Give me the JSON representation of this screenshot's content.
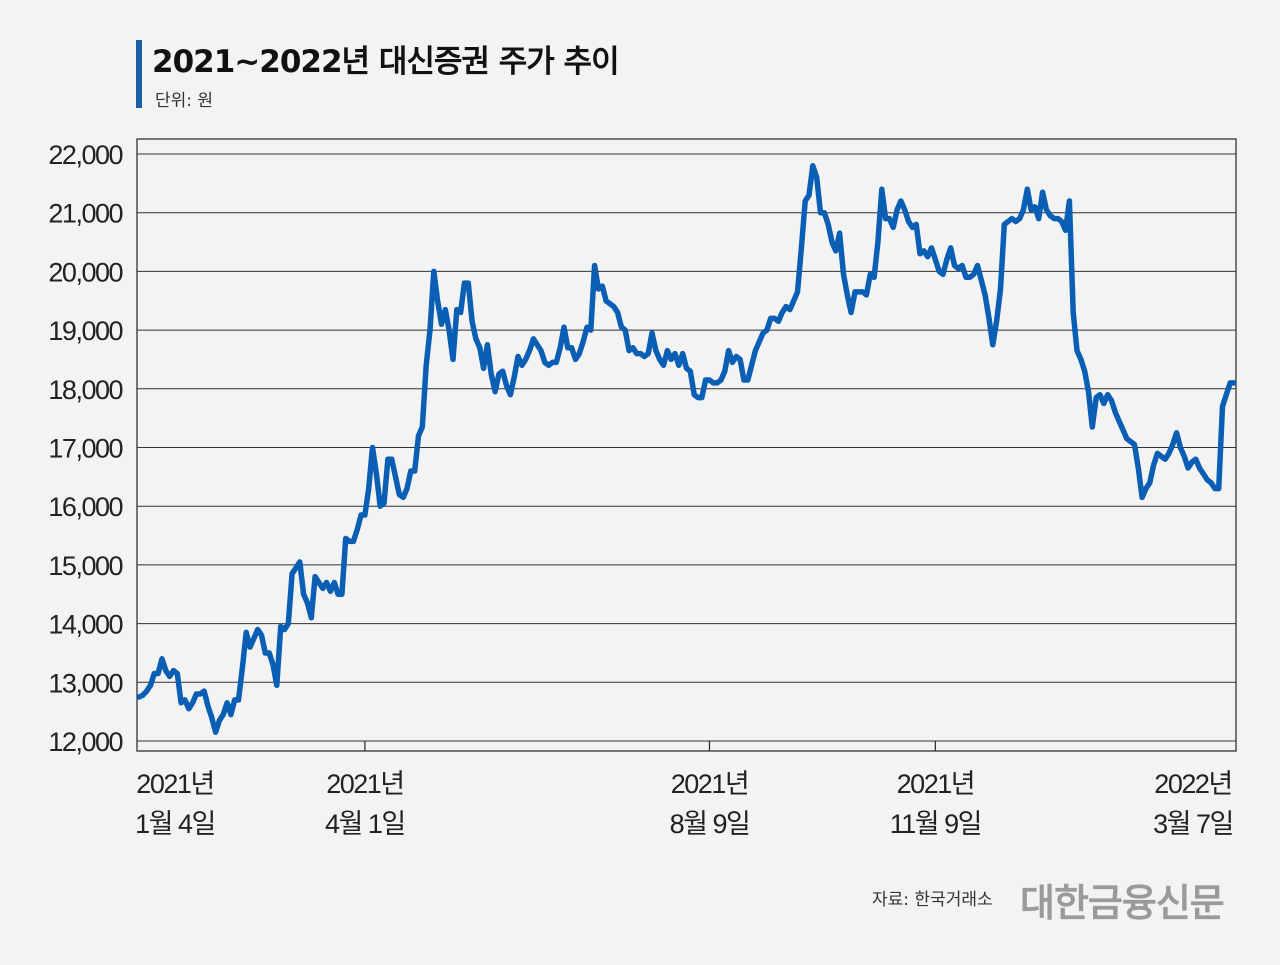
{
  "title": "2021~2022년 대신증권 주가 추이",
  "unit": "단위: 원",
  "source": "자료: 한국거래소",
  "brand": "대한금융신문",
  "colors": {
    "line": "#0a5fb4",
    "accent": "#1a5ea8",
    "grid": "#333333"
  },
  "chart_data": {
    "type": "line",
    "title": "2021~2022년 대신증권 주가 추이",
    "ylabel": "단위: 원",
    "ylim": [
      12000,
      22000
    ],
    "yticks": [
      12000,
      13000,
      14000,
      15000,
      16000,
      17000,
      18000,
      19000,
      20000,
      21000,
      22000
    ],
    "ytick_labels": [
      "12,000",
      "13,000",
      "14,000",
      "15,000",
      "16,000",
      "17,000",
      "18,000",
      "19,000",
      "20,000",
      "21,000",
      "22,000"
    ],
    "xticks": [
      {
        "line1": "2021년",
        "line2": "1월 4일",
        "index": 0
      },
      {
        "line1": "2021년",
        "line2": "4월 1일",
        "index": 59
      },
      {
        "line1": "2021년",
        "line2": "8월 9일",
        "index": 149
      },
      {
        "line1": "2021년",
        "line2": "11월 9일",
        "index": 208
      },
      {
        "line1": "2022년",
        "line2": "3월 7일",
        "index": 249
      }
    ],
    "grid": true,
    "series": [
      {
        "values": [
          12750,
          12780,
          12850,
          12950,
          13150,
          13150,
          13400,
          13200,
          13100,
          13200,
          13150,
          12650,
          12700,
          12550,
          12650,
          12800,
          12800,
          12850,
          12600,
          12400,
          12150,
          12350,
          12450,
          12650,
          12450,
          12700,
          12700,
          13250,
          13850,
          13600,
          13750,
          13900,
          13800,
          13500,
          13500,
          13300,
          12950,
          13950,
          13900,
          14000,
          14850,
          14950,
          15050,
          14500,
          14350,
          14100,
          14800,
          14700,
          14600,
          14700,
          14550,
          14700,
          14500,
          14500,
          15450,
          15400,
          15400,
          15600,
          15850,
          15850,
          16300,
          17000,
          16550,
          16000,
          16050,
          16800,
          16800,
          16500,
          16200,
          16150,
          16300,
          16600,
          16600,
          17200,
          17350,
          18400,
          19000,
          20000,
          19500,
          19100,
          19350,
          19000,
          18500,
          19350,
          19300,
          19800,
          19800,
          19150,
          18850,
          18700,
          18350,
          18750,
          18250,
          17950,
          18250,
          18300,
          18050,
          17900,
          18200,
          18550,
          18400,
          18500,
          18650,
          18850,
          18750,
          18650,
          18450,
          18400,
          18450,
          18450,
          18700,
          19050,
          18700,
          18700,
          18500,
          18600,
          18800,
          19050,
          19000,
          20100,
          19700,
          19750,
          19500,
          19450,
          19400,
          19300,
          19050,
          19000,
          18650,
          18700,
          18600,
          18600,
          18550,
          18600,
          18950,
          18650,
          18500,
          18400,
          18650,
          18500,
          18600,
          18400,
          18600,
          18350,
          18300,
          17900,
          17850,
          17850,
          18150,
          18150,
          18100,
          18100,
          18150,
          18300,
          18650,
          18450,
          18550,
          18500,
          18150,
          18150,
          18400,
          18650,
          18800,
          18950,
          19000,
          19200,
          19200,
          19150,
          19300,
          19400,
          19350,
          19500,
          19650,
          20400,
          21200,
          21300,
          21800,
          21600,
          21000,
          21000,
          20800,
          20500,
          20350,
          20650,
          19950,
          19600,
          19300,
          19650,
          19650,
          19650,
          19600,
          19950,
          19900,
          20500,
          21400,
          20900,
          20900,
          20750,
          21050,
          21200,
          21050,
          20850,
          20750,
          20800,
          20300,
          20350,
          20250,
          20400,
          20200,
          20000,
          19950,
          20200,
          20400,
          20100,
          20050,
          20100,
          19900,
          19900,
          19950,
          20100,
          19850,
          19600,
          19200,
          18750,
          19150,
          19700,
          20800,
          20850,
          20900,
          20850,
          20900,
          21050,
          21400,
          21050,
          21100,
          20900,
          21350,
          21050,
          20950,
          20900,
          20900,
          20850,
          20700,
          21200,
          19300,
          18650,
          18500,
          18300,
          17950,
          17350,
          17850,
          17900,
          17750,
          17900,
          17800,
          17600,
          17450,
          17300,
          17150,
          17100,
          17050,
          16650,
          16150,
          16300,
          16400,
          16700,
          16900,
          16850,
          16800,
          16900,
          17050,
          17250,
          17000,
          16850,
          16650,
          16750,
          16800,
          16650,
          16550,
          16450,
          16400,
          16300,
          16300,
          17700,
          17900,
          18100,
          18100
        ]
      }
    ]
  }
}
